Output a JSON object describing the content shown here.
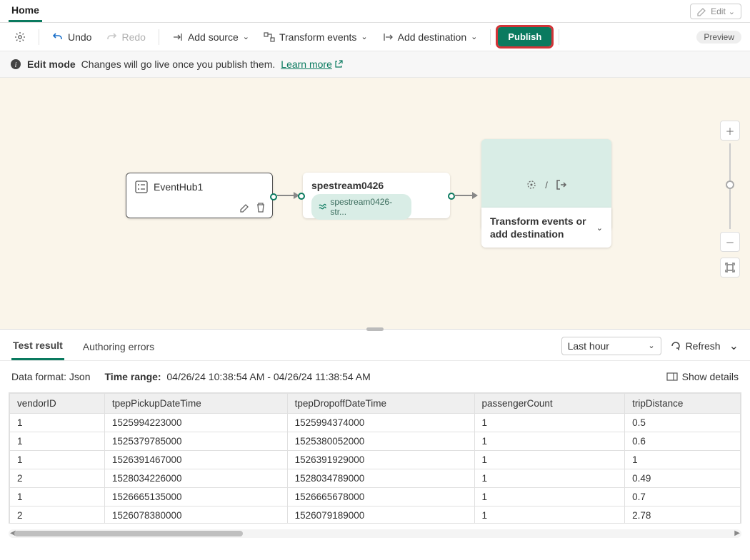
{
  "topbar": {
    "home": "Home",
    "edit": "Edit"
  },
  "toolbar": {
    "undo": "Undo",
    "redo": "Redo",
    "addSource": "Add source",
    "transform": "Transform events",
    "addDest": "Add destination",
    "publish": "Publish",
    "preview": "Preview"
  },
  "infobar": {
    "mode": "Edit mode",
    "msg": "Changes will go live once you publish them.",
    "learn": "Learn more"
  },
  "nodes": {
    "source": {
      "title": "EventHub1"
    },
    "mid": {
      "title": "spestream0426",
      "pill": "spestream0426-str..."
    },
    "destAction": "Transform events or add destination",
    "destSlash": "/"
  },
  "results": {
    "tabs": {
      "test": "Test result",
      "errors": "Authoring errors"
    },
    "timeSelect": "Last hour",
    "refresh": "Refresh",
    "dataFormatLabel": "Data format:",
    "dataFormatValue": "Json",
    "timeRangeLabel": "Time range:",
    "timeRangeValue": "04/26/24 10:38:54 AM - 04/26/24 11:38:54 AM",
    "showDetails": "Show details",
    "columns": [
      "vendorID",
      "tpepPickupDateTime",
      "tpepDropoffDateTime",
      "passengerCount",
      "tripDistance"
    ],
    "rows": [
      [
        "1",
        "1525994223000",
        "1525994374000",
        "1",
        "0.5"
      ],
      [
        "1",
        "1525379785000",
        "1525380052000",
        "1",
        "0.6"
      ],
      [
        "1",
        "1526391467000",
        "1526391929000",
        "1",
        "1"
      ],
      [
        "2",
        "1528034226000",
        "1528034789000",
        "1",
        "0.49"
      ],
      [
        "1",
        "1526665135000",
        "1526665678000",
        "1",
        "0.7"
      ],
      [
        "2",
        "1526078380000",
        "1526079189000",
        "1",
        "2.78"
      ]
    ]
  },
  "colors": {
    "accent": "#0a7a5f",
    "canvasBg": "#faf5ea",
    "pillBg": "#d9ede6",
    "highlight": "#d13438"
  }
}
